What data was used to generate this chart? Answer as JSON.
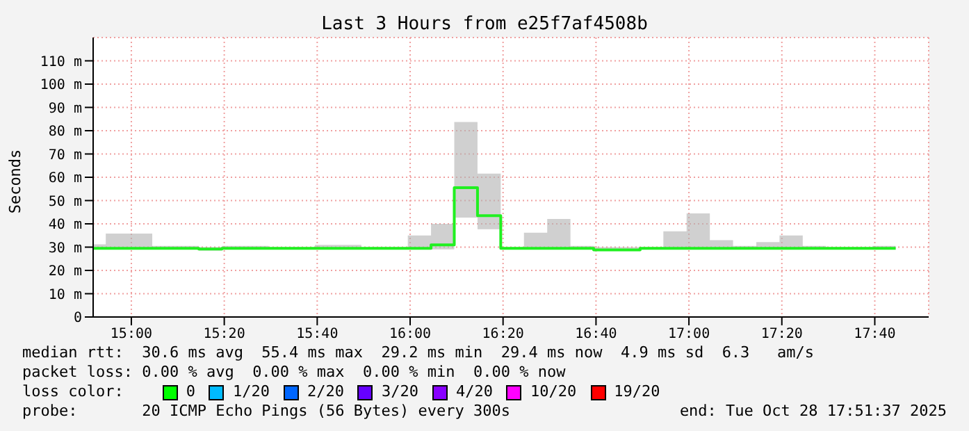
{
  "chart_data": {
    "type": "step",
    "title": "Last 3 Hours from e25f7af4508b",
    "ylabel": "Seconds",
    "x": [
      14.863,
      14.9083,
      14.9917,
      15.075,
      15.1583,
      15.2417,
      15.325,
      15.4083,
      15.4917,
      15.575,
      15.6583,
      15.7417,
      15.825,
      15.9083,
      15.9917,
      16.075,
      16.1583,
      16.2417,
      16.325,
      16.4083,
      16.4917,
      16.575,
      16.6583,
      16.7417,
      16.825,
      16.9083,
      16.9917,
      17.075,
      17.1583,
      17.2417,
      17.325,
      17.4083,
      17.4917,
      17.575,
      17.6583,
      17.7417
    ],
    "series": [
      {
        "color": "#20f020",
        "values": [
          29.5,
          29.5,
          29.5,
          29.5,
          29.5,
          29.2,
          29.5,
          29.5,
          29.5,
          29.5,
          29.5,
          29.5,
          29.5,
          29.5,
          29.5,
          31,
          55.5,
          43.5,
          29.5,
          29.5,
          29.5,
          29.5,
          28.8,
          28.8,
          29.5,
          29.5,
          29.5,
          29.5,
          29.5,
          29.5,
          29.5,
          29.5,
          29.5,
          29.5,
          29.5,
          29.5
        ],
        "lower": [
          29,
          29,
          29,
          29,
          29,
          28.5,
          29,
          29,
          29,
          29,
          29,
          29,
          29,
          29,
          29,
          29,
          42.7,
          37.7,
          29,
          29,
          29,
          29,
          28.5,
          28.5,
          29,
          29,
          29,
          29,
          29,
          29,
          29,
          29,
          29,
          29,
          29,
          29
        ],
        "upper": [
          31.2,
          35.8,
          35.8,
          30.5,
          30.5,
          30,
          30.5,
          30.5,
          30,
          30,
          31,
          31,
          30,
          30,
          35,
          40,
          83.7,
          61.6,
          30,
          36.2,
          42.1,
          30.5,
          30,
          30,
          30,
          36.8,
          44.5,
          33,
          30.5,
          32.2,
          35,
          30.5,
          30,
          30,
          30.5,
          30.5
        ]
      }
    ],
    "xlim": [
      14.863,
      17.86
    ],
    "xticks": [
      {
        "value": 15,
        "label": "15:00"
      },
      {
        "value": 15.3333,
        "label": "15:20"
      },
      {
        "value": 15.6667,
        "label": "15:40"
      },
      {
        "value": 16,
        "label": "16:00"
      },
      {
        "value": 16.3333,
        "label": "16:20"
      },
      {
        "value": 16.6667,
        "label": "16:40"
      },
      {
        "value": 17,
        "label": "17:00"
      },
      {
        "value": 17.3333,
        "label": "17:20"
      },
      {
        "value": 17.6667,
        "label": "17:40"
      }
    ],
    "ylim": [
      0,
      120
    ],
    "yticks": [
      0,
      {
        "value": 10,
        "label": "10 m"
      },
      {
        "value": 20,
        "label": "20 m"
      },
      {
        "value": 30,
        "label": "30 m"
      },
      {
        "value": 40,
        "label": "40 m"
      },
      {
        "value": 50,
        "label": "50 m"
      },
      {
        "value": 60,
        "label": "60 m"
      },
      {
        "value": 70,
        "label": "70 m"
      },
      {
        "value": 80,
        "label": "80 m"
      },
      {
        "value": 90,
        "label": "90 m"
      },
      {
        "value": 100,
        "label": "100 m"
      },
      {
        "value": 110,
        "label": "110 m"
      }
    ],
    "grid": true,
    "annotations": [
      "median rtt:  30.6 ms avg  55.4 ms max  29.2 ms min  29.4 ms now  4.9 ms sd  6.3   am/s",
      "packet loss: 0.00 % avg  0.00 % max  0.00 % min  0.00 % now",
      "loss color:",
      "0",
      "1/20",
      "2/20",
      "3/20",
      "4/20",
      "10/20",
      "19/20",
      "probe:       20 ICMP Echo Pings (56 Bytes) every 300s",
      "end: Tue Oct 28 17:51:37 2025"
    ]
  }
}
